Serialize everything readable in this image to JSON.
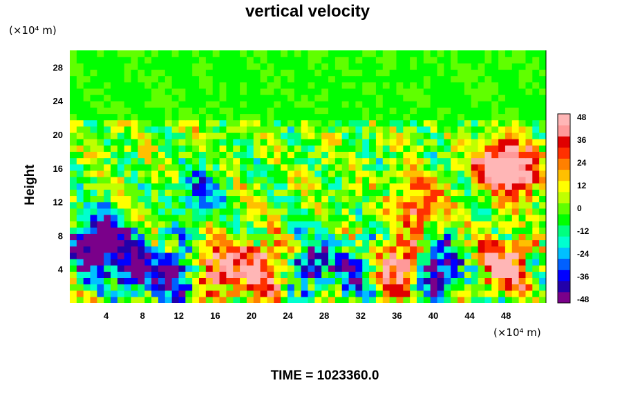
{
  "chart_data": {
    "type": "heatmap",
    "title": "vertical velocity",
    "ylabel": "Height",
    "xlabel": "",
    "y_unit": "(×10⁴ m)",
    "x_unit": "(×10⁴ m)",
    "time_label": "TIME = 1023360.0",
    "xlim": [
      0,
      52.4
    ],
    "ylim": [
      0,
      30
    ],
    "x_ticks": [
      "4",
      "8",
      "12",
      "16",
      "20",
      "24",
      "28",
      "32",
      "36",
      "40",
      "44",
      "48"
    ],
    "y_ticks": [
      "4",
      "8",
      "12",
      "16",
      "20",
      "24",
      "28"
    ],
    "colorbar": {
      "min": -48,
      "max": 48,
      "ticks": [
        "48",
        "36",
        "24",
        "12",
        "0",
        "-12",
        "-24",
        "-36",
        "-48"
      ],
      "colors": [
        "#7a008a",
        "#2200aa",
        "#0000ff",
        "#0060ff",
        "#00c0ff",
        "#00ffd0",
        "#00ff80",
        "#00ff00",
        "#60ff00",
        "#c0ff00",
        "#ffff00",
        "#ffc000",
        "#ff8000",
        "#ff3000",
        "#e00000",
        "#ff9999",
        "#ffb6b6"
      ]
    },
    "features": [
      {
        "x": 2.2,
        "y": 6.5,
        "value": -44
      },
      {
        "x": 7.0,
        "y": 4.0,
        "value": -48
      },
      {
        "x": 11.3,
        "y": 3.3,
        "value": -45
      },
      {
        "x": 16.8,
        "y": 4.2,
        "value": 48
      },
      {
        "x": 21.5,
        "y": 4.0,
        "value": 48
      },
      {
        "x": 26.4,
        "y": 4.8,
        "value": -40
      },
      {
        "x": 31.5,
        "y": 3.8,
        "value": -36
      },
      {
        "x": 36.0,
        "y": 4.4,
        "value": 48
      },
      {
        "x": 40.5,
        "y": 4.2,
        "value": -48
      },
      {
        "x": 48.0,
        "y": 4.4,
        "value": 48
      },
      {
        "x": 46.8,
        "y": 16.5,
        "value": 44
      },
      {
        "x": 49.5,
        "y": 15.5,
        "value": 48
      },
      {
        "x": 14.2,
        "y": 13.0,
        "value": -30
      },
      {
        "x": 38.5,
        "y": 11.5,
        "value": 36
      },
      {
        "x": 4.0,
        "y": 8.0,
        "value": -42
      }
    ]
  }
}
